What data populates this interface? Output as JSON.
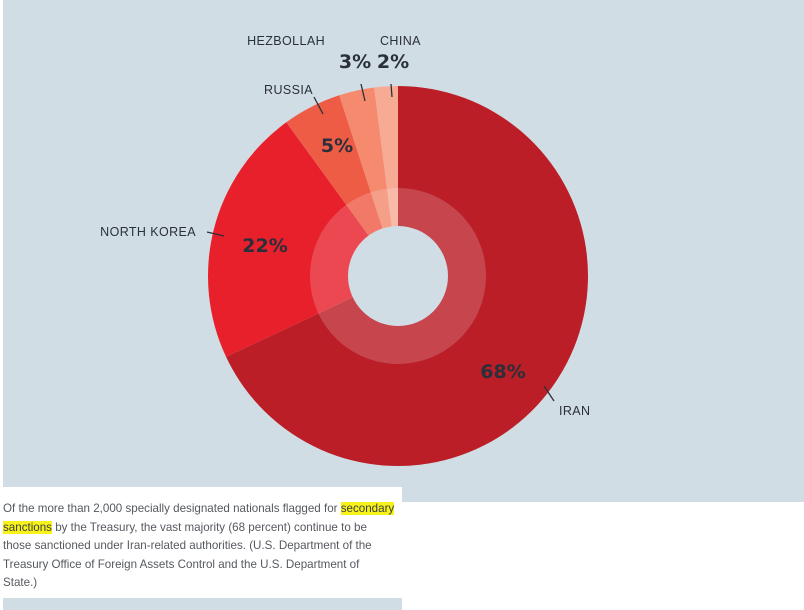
{
  "chart_data": {
    "type": "pie",
    "variant": "donut",
    "slices": [
      {
        "label": "IRAN",
        "value": 68,
        "value_label": "68%",
        "color": "#bb1e26"
      },
      {
        "label": "NORTH KOREA",
        "value": 22,
        "value_label": "22%",
        "color": "#e8202b"
      },
      {
        "label": "RUSSIA",
        "value": 5,
        "value_label": "5%",
        "color": "#ef5c46"
      },
      {
        "label": "HEZBOLLAH",
        "value": 3,
        "value_label": "3%",
        "color": "#f58a6e"
      },
      {
        "label": "CHINA",
        "value": 2,
        "value_label": "2%",
        "color": "#f8ab94"
      }
    ],
    "background": "#d1dde5"
  },
  "caption": {
    "before": "Of the more than 2,000 specially designated nationals flagged for ",
    "highlight": "secondary sanctions",
    "after": " by the Treasury, the vast majority (68 percent) continue to be those sanctioned under Iran-related authorities. (U.S. Department of the Treasury Office of Foreign Assets Control and the U.S. Department of State.)"
  }
}
